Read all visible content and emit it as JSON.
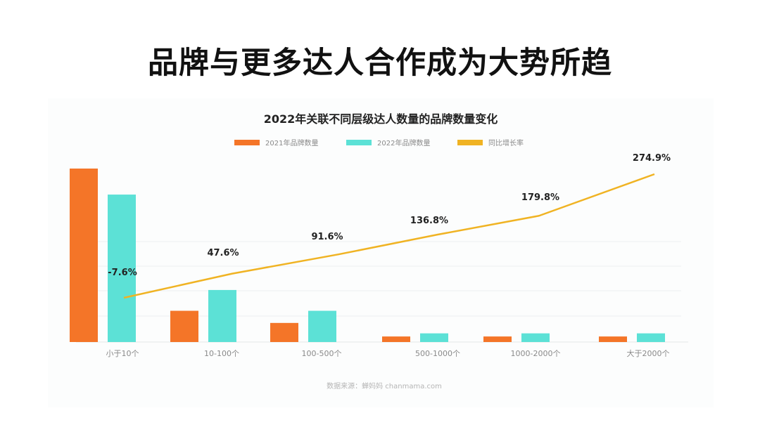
{
  "page": {
    "title": "品牌与更多达人合作成为大势所趋"
  },
  "chart_data": {
    "type": "bar",
    "title": "2022年关联不同层级达人数量的品牌数量变化",
    "categories": [
      "小于10个",
      "10-100个",
      "100-500个",
      "500-1000个",
      "1000-2000个",
      "大于2000个"
    ],
    "series": [
      {
        "name": "2021年品牌数量",
        "type": "bar",
        "color": "#f47528",
        "values": [
          100,
          18,
          11,
          3.2,
          3.2,
          3.2
        ]
      },
      {
        "name": "2022年品牌数量",
        "type": "bar",
        "color": "#5ce1d6",
        "values": [
          85,
          30,
          18,
          5,
          5,
          5
        ]
      },
      {
        "name": "同比增长率",
        "type": "line",
        "color": "#f0b323",
        "values": [
          -7.6,
          47.6,
          91.6,
          136.8,
          179.8,
          274.9
        ],
        "labels": [
          "-7.6%",
          "47.6%",
          "91.6%",
          "136.8%",
          "179.8%",
          "274.9%"
        ]
      }
    ],
    "legend_position": "top-center",
    "grid": true
  },
  "source": "数据来源：蝉妈妈 chanmama.com"
}
